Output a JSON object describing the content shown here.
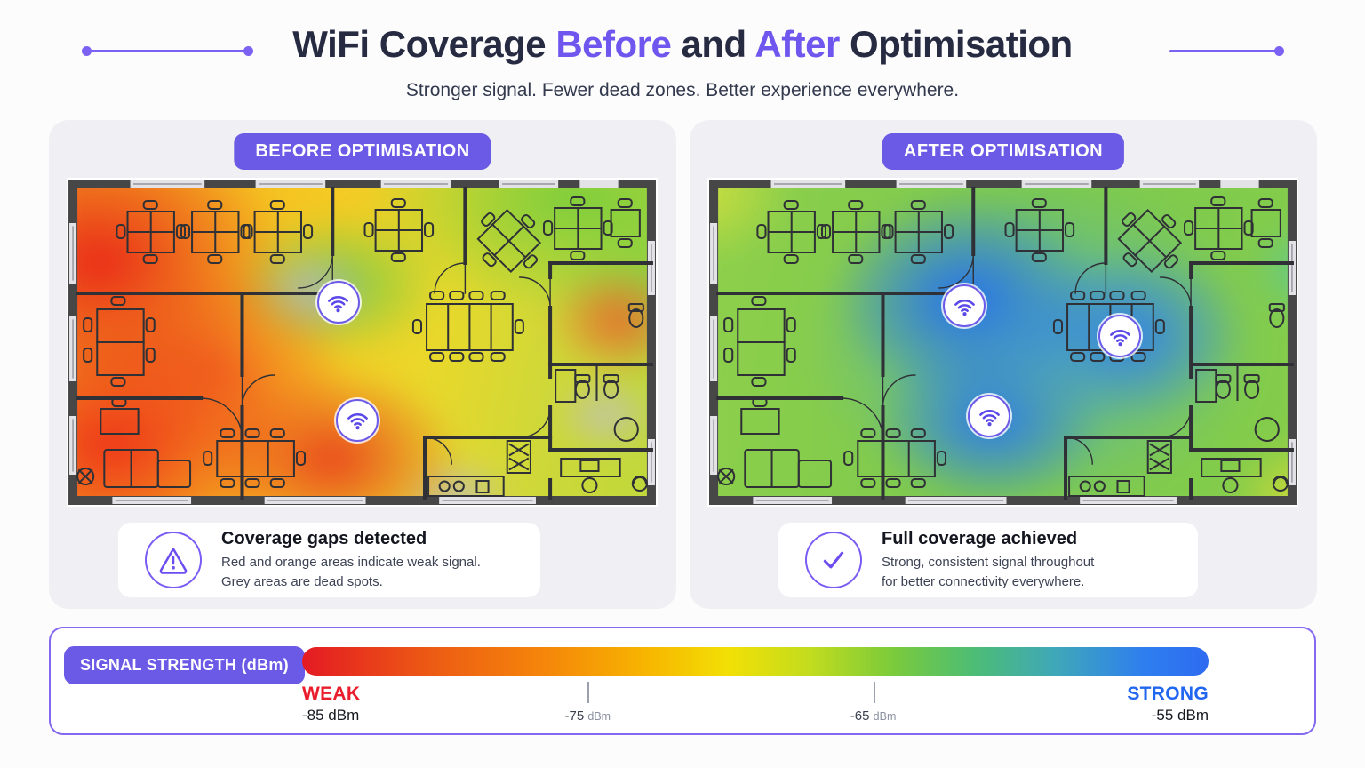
{
  "header": {
    "title_part1": "WiFi Coverage ",
    "title_highlight1": "Before",
    "title_part2": " and ",
    "title_highlight2": "After",
    "title_part3": " Optimisation",
    "subtitle": "Stronger signal. Fewer dead zones. Better experience everywhere."
  },
  "panels": {
    "before": {
      "badge": "BEFORE OPTIMISATION",
      "callout": {
        "icon": "warning-icon",
        "title": "Coverage gaps detected",
        "line1": "Red and orange areas indicate weak signal.",
        "line2": "Grey areas are dead spots."
      },
      "access_points": [
        {
          "x": 45.7,
          "y": 37.3
        },
        {
          "x": 48.9,
          "y": 73.2
        }
      ]
    },
    "after": {
      "badge": "AFTER OPTIMISATION",
      "callout": {
        "icon": "check-icon",
        "title": "Full coverage achieved",
        "line1": "Strong, consistent signal throughout",
        "line2": "for better connectivity everywhere."
      },
      "access_points": [
        {
          "x": 43.2,
          "y": 38.4
        },
        {
          "x": 69.5,
          "y": 47.6
        },
        {
          "x": 47.4,
          "y": 71.9
        }
      ]
    }
  },
  "legend": {
    "badge": "SIGNAL STRENGTH (dBm)",
    "weak": {
      "label": "WEAK",
      "value": "-85 dBm"
    },
    "strong": {
      "label": "STRONG",
      "value": "-55 dBm"
    },
    "ticks": [
      {
        "value": "-75",
        "unit": "dBm",
        "pos": 31.5
      },
      {
        "value": "-65",
        "unit": "dBm",
        "pos": 63.0
      }
    ],
    "gradient_stops": [
      "#e41a23 0%",
      "#ec5a14 14%",
      "#f5870a 27%",
      "#f7b500 38%",
      "#f2e005 47%",
      "#c2dc1e 56%",
      "#7ccb3a 65%",
      "#4dbd74 74%",
      "#3fa8b8 83%",
      "#2e7ef0 93%",
      "#2d6bf0 100%"
    ]
  },
  "colors": {
    "accent_purple": "#6b5ae6",
    "title_purple": "#6e56ee",
    "weak_red": "#ea1d2c",
    "strong_blue": "#2066f0",
    "heading_navy": "#262b42",
    "card_grey": "#f0f0f4"
  }
}
